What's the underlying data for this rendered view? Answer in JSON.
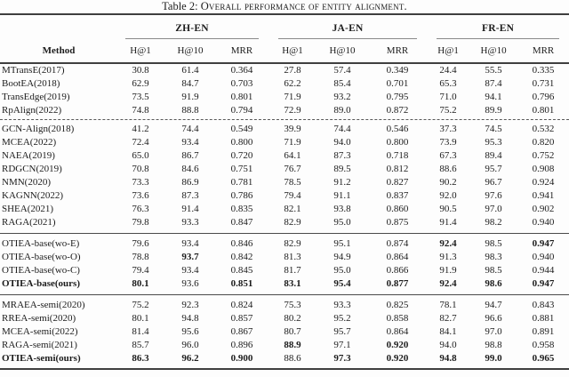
{
  "caption": {
    "prefix": "Table 2: ",
    "smallcaps_text": "Overall performance of entity alignment."
  },
  "table": {
    "method_header": "Method",
    "groups": [
      {
        "label": "ZH-EN"
      },
      {
        "label": "JA-EN"
      },
      {
        "label": "FR-EN"
      }
    ],
    "metric_headers": [
      "H@1",
      "H@10",
      "MRR"
    ],
    "sections": [
      {
        "divider": null,
        "rows": [
          {
            "method": "MTransE(2017)",
            "bold_method": false,
            "values": [
              "30.8",
              "61.4",
              "0.364",
              "27.8",
              "57.4",
              "0.349",
              "24.4",
              "55.5",
              "0.335"
            ],
            "bold": []
          },
          {
            "method": "BootEA(2018)",
            "bold_method": false,
            "values": [
              "62.9",
              "84.7",
              "0.703",
              "62.2",
              "85.4",
              "0.701",
              "65.3",
              "87.4",
              "0.731"
            ],
            "bold": []
          },
          {
            "method": "TransEdge(2019)",
            "bold_method": false,
            "values": [
              "73.5",
              "91.9",
              "0.801",
              "71.9",
              "93.2",
              "0.795",
              "71.0",
              "94.1",
              "0.796"
            ],
            "bold": []
          },
          {
            "method": "RpAlign(2022)",
            "bold_method": false,
            "values": [
              "74.8",
              "88.8",
              "0.794",
              "72.9",
              "89.0",
              "0.872",
              "75.2",
              "89.9",
              "0.801"
            ],
            "bold": []
          }
        ]
      },
      {
        "divider": "dashed",
        "rows": [
          {
            "method": "GCN-Align(2018)",
            "bold_method": false,
            "values": [
              "41.2",
              "74.4",
              "0.549",
              "39.9",
              "74.4",
              "0.546",
              "37.3",
              "74.5",
              "0.532"
            ],
            "bold": []
          },
          {
            "method": "MCEA(2022)",
            "bold_method": false,
            "values": [
              "72.4",
              "93.4",
              "0.800",
              "71.9",
              "94.0",
              "0.800",
              "73.9",
              "95.3",
              "0.820"
            ],
            "bold": []
          },
          {
            "method": "NAEA(2019)",
            "bold_method": false,
            "values": [
              "65.0",
              "86.7",
              "0.720",
              "64.1",
              "87.3",
              "0.718",
              "67.3",
              "89.4",
              "0.752"
            ],
            "bold": []
          },
          {
            "method": "RDGCN(2019)",
            "bold_method": false,
            "values": [
              "70.8",
              "84.6",
              "0.751",
              "76.7",
              "89.5",
              "0.812",
              "88.6",
              "95.7",
              "0.908"
            ],
            "bold": []
          },
          {
            "method": "NMN(2020)",
            "bold_method": false,
            "values": [
              "73.3",
              "86.9",
              "0.781",
              "78.5",
              "91.2",
              "0.827",
              "90.2",
              "96.7",
              "0.924"
            ],
            "bold": []
          },
          {
            "method": "KAGNN(2022)",
            "bold_method": false,
            "values": [
              "73.6",
              "87.3",
              "0.786",
              "79.4",
              "91.1",
              "0.837",
              "92.0",
              "97.6",
              "0.941"
            ],
            "bold": []
          },
          {
            "method": "SHEA(2021)",
            "bold_method": false,
            "values": [
              "76.3",
              "91.4",
              "0.835",
              "82.1",
              "93.8",
              "0.860",
              "90.5",
              "97.0",
              "0.902"
            ],
            "bold": []
          },
          {
            "method": "RAGA(2021)",
            "bold_method": false,
            "values": [
              "79.8",
              "93.3",
              "0.847",
              "82.9",
              "95.0",
              "0.875",
              "91.4",
              "98.2",
              "0.940"
            ],
            "bold": []
          }
        ]
      },
      {
        "divider": "solid",
        "rows": [
          {
            "method": "OTIEA-base(wo-E)",
            "bold_method": false,
            "values": [
              "79.6",
              "93.4",
              "0.846",
              "82.9",
              "95.1",
              "0.874",
              "92.4",
              "98.5",
              "0.947"
            ],
            "bold": [
              6,
              8
            ]
          },
          {
            "method": "OTIEA-base(wo-O)",
            "bold_method": false,
            "values": [
              "78.8",
              "93.7",
              "0.842",
              "81.3",
              "94.9",
              "0.864",
              "91.3",
              "98.3",
              "0.940"
            ],
            "bold": [
              1
            ]
          },
          {
            "method": "OTIEA-base(wo-C)",
            "bold_method": false,
            "values": [
              "79.4",
              "93.4",
              "0.845",
              "81.7",
              "95.0",
              "0.866",
              "91.9",
              "98.5",
              "0.944"
            ],
            "bold": []
          },
          {
            "method": "OTIEA-base(ours)",
            "bold_method": true,
            "values": [
              "80.1",
              "93.6",
              "0.851",
              "83.1",
              "95.4",
              "0.877",
              "92.4",
              "98.6",
              "0.947"
            ],
            "bold": [
              0,
              2,
              3,
              4,
              5,
              6,
              7,
              8
            ]
          }
        ]
      },
      {
        "divider": "solid",
        "rows": [
          {
            "method": "MRAEA-semi(2020)",
            "bold_method": false,
            "values": [
              "75.2",
              "92.3",
              "0.824",
              "75.3",
              "93.3",
              "0.825",
              "78.1",
              "94.7",
              "0.843"
            ],
            "bold": []
          },
          {
            "method": "RREA-semi(2020)",
            "bold_method": false,
            "values": [
              "80.1",
              "94.8",
              "0.857",
              "80.2",
              "95.2",
              "0.858",
              "82.7",
              "96.6",
              "0.881"
            ],
            "bold": []
          },
          {
            "method": "MCEA-semi(2022)",
            "bold_method": false,
            "values": [
              "81.4",
              "95.6",
              "0.867",
              "80.7",
              "95.7",
              "0.864",
              "84.1",
              "97.0",
              "0.891"
            ],
            "bold": []
          },
          {
            "method": "RAGA-semi(2021)",
            "bold_method": false,
            "values": [
              "85.7",
              "96.0",
              "0.896",
              "88.9",
              "97.1",
              "0.920",
              "94.0",
              "98.8",
              "0.958"
            ],
            "bold": [
              3,
              5
            ]
          },
          {
            "method": "OTIEA-semi(ours)",
            "bold_method": true,
            "values": [
              "86.3",
              "96.2",
              "0.900",
              "88.6",
              "97.3",
              "0.920",
              "94.8",
              "99.0",
              "0.965"
            ],
            "bold": [
              0,
              1,
              2,
              4,
              5,
              6,
              7,
              8
            ]
          }
        ]
      }
    ]
  }
}
